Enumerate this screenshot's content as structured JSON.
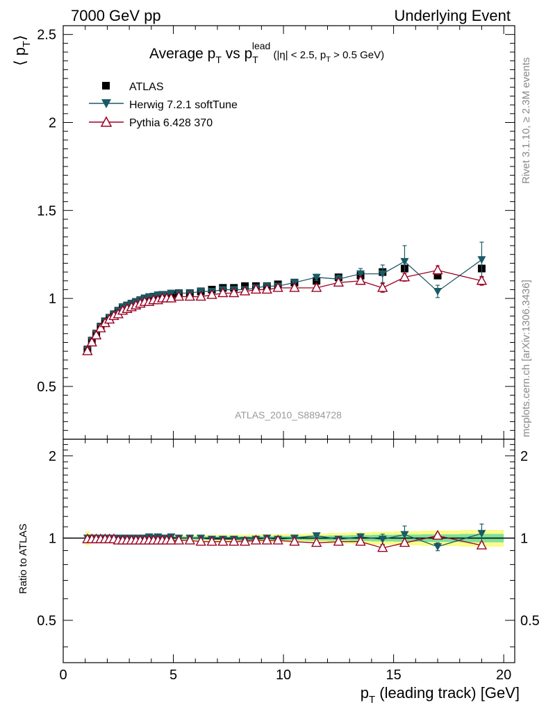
{
  "header": {
    "left": "7000 GeV pp",
    "right": "Underlying Event"
  },
  "side": {
    "rivet": "Rivet 3.1.10, ≥ 2.3M events",
    "mcplots": "mcplots.cern.ch [arXiv:1306.3436]"
  },
  "chart_data": {
    "type": "scatter",
    "title": {
      "main": "Average p",
      "sub": "T",
      "mid": " vs p",
      "sub2": "T",
      "sup2": "lead",
      "cut": " (|η| < 2.5, p",
      "cut_sub": "T",
      "cut_end": " > 0.5 GeV)"
    },
    "analysis_id": "ATLAS_2010_S8894728",
    "ylabel_main": "⟨ p",
    "ylabel_main_sub": "T",
    "ylabel_main_end": "⟩",
    "ylabel_ratio": "Ratio to ATLAS",
    "xlabel": "p",
    "xlabel_sub": "T",
    "xlabel_end": " (leading track) [GeV]",
    "xlim": [
      0,
      20.5
    ],
    "ylim_main": [
      0.2,
      2.55
    ],
    "ylim_ratio": [
      0.35,
      2.3
    ],
    "x_ticks": [
      "0",
      "5",
      "10",
      "15",
      "20"
    ],
    "y_ticks_main": [
      "0.5",
      "1",
      "1.5",
      "2",
      "2.5"
    ],
    "y_ticks_ratio": [
      "0.5",
      "1",
      "2"
    ],
    "legend_position": "top-left",
    "colors": {
      "atlas": "#000000",
      "herwig": "#1a5a66",
      "pythia": "#9a0022",
      "band_inner": "#7fe09a",
      "band_outer": "#fbfb8a"
    },
    "x": [
      1.1,
      1.3,
      1.5,
      1.7,
      1.9,
      2.1,
      2.3,
      2.5,
      2.7,
      2.9,
      3.1,
      3.3,
      3.5,
      3.7,
      3.9,
      4.1,
      4.3,
      4.5,
      4.7,
      4.9,
      5.25,
      5.75,
      6.25,
      6.75,
      7.25,
      7.75,
      8.25,
      8.75,
      9.25,
      9.75,
      10.5,
      11.5,
      12.5,
      13.5,
      14.5,
      15.5,
      17.0,
      19.0
    ],
    "series": [
      {
        "name": "ATLAS",
        "marker": "square",
        "values": [
          0.71,
          0.76,
          0.8,
          0.84,
          0.87,
          0.89,
          0.91,
          0.93,
          0.95,
          0.96,
          0.97,
          0.98,
          0.99,
          1.0,
          1.0,
          1.01,
          1.01,
          1.02,
          1.02,
          1.02,
          1.03,
          1.03,
          1.04,
          1.05,
          1.06,
          1.06,
          1.07,
          1.07,
          1.07,
          1.08,
          1.09,
          1.1,
          1.12,
          1.13,
          1.15,
          1.17,
          1.13,
          1.17
        ]
      },
      {
        "name": "Herwig 7.2.1 softTune",
        "marker": "triangle-down",
        "values": [
          0.71,
          0.76,
          0.8,
          0.84,
          0.87,
          0.89,
          0.91,
          0.93,
          0.95,
          0.96,
          0.97,
          0.98,
          0.99,
          1.0,
          1.01,
          1.01,
          1.02,
          1.02,
          1.02,
          1.03,
          1.03,
          1.03,
          1.04,
          1.04,
          1.05,
          1.05,
          1.05,
          1.06,
          1.07,
          1.07,
          1.09,
          1.12,
          1.11,
          1.14,
          1.14,
          1.21,
          1.04,
          1.22
        ],
        "errors": [
          0.005,
          0.005,
          0.005,
          0.005,
          0.005,
          0.005,
          0.005,
          0.005,
          0.005,
          0.005,
          0.005,
          0.005,
          0.005,
          0.005,
          0.005,
          0.005,
          0.005,
          0.005,
          0.005,
          0.005,
          0.006,
          0.006,
          0.006,
          0.007,
          0.008,
          0.008,
          0.009,
          0.01,
          0.011,
          0.012,
          0.014,
          0.018,
          0.022,
          0.03,
          0.05,
          0.09,
          0.035,
          0.1
        ]
      },
      {
        "name": "Pythia 6.428 370",
        "marker": "triangle-up-open",
        "values": [
          0.7,
          0.75,
          0.79,
          0.83,
          0.86,
          0.88,
          0.9,
          0.91,
          0.93,
          0.94,
          0.95,
          0.96,
          0.97,
          0.98,
          0.98,
          0.99,
          0.99,
          1.0,
          1.0,
          1.0,
          1.01,
          1.01,
          1.01,
          1.02,
          1.03,
          1.03,
          1.04,
          1.05,
          1.05,
          1.06,
          1.06,
          1.06,
          1.09,
          1.1,
          1.06,
          1.12,
          1.16,
          1.1
        ],
        "errors": [
          0.005,
          0.005,
          0.005,
          0.005,
          0.005,
          0.005,
          0.005,
          0.005,
          0.005,
          0.005,
          0.005,
          0.005,
          0.005,
          0.005,
          0.005,
          0.005,
          0.005,
          0.005,
          0.005,
          0.005,
          0.006,
          0.006,
          0.006,
          0.007,
          0.008,
          0.008,
          0.009,
          0.01,
          0.01,
          0.011,
          0.012,
          0.014,
          0.016,
          0.02,
          0.025,
          0.022,
          0.025,
          0.025
        ]
      }
    ],
    "ratio": {
      "herwig": [
        1.0,
        1.0,
        1.0,
        1.0,
        1.0,
        1.0,
        1.0,
        1.0,
        1.0,
        1.0,
        1.0,
        1.0,
        1.0,
        1.0,
        1.01,
        1.0,
        1.01,
        1.0,
        1.0,
        1.01,
        1.0,
        1.0,
        1.0,
        0.99,
        0.99,
        0.99,
        0.98,
        0.99,
        1.0,
        0.99,
        1.0,
        1.02,
        0.99,
        1.01,
        0.99,
        1.03,
        0.93,
        1.04
      ],
      "pythia": [
        0.99,
        0.99,
        0.99,
        0.99,
        0.99,
        0.99,
        0.99,
        0.98,
        0.98,
        0.98,
        0.98,
        0.98,
        0.98,
        0.98,
        0.98,
        0.98,
        0.98,
        0.98,
        0.98,
        0.98,
        0.98,
        0.98,
        0.97,
        0.97,
        0.97,
        0.97,
        0.97,
        0.98,
        0.98,
        0.98,
        0.97,
        0.96,
        0.97,
        0.97,
        0.92,
        0.96,
        1.02,
        0.94
      ],
      "band_inner_halfwidth": [
        0.025,
        0.02,
        0.018,
        0.016,
        0.015,
        0.014,
        0.013,
        0.013,
        0.013,
        0.013,
        0.013,
        0.013,
        0.013,
        0.013,
        0.013,
        0.013,
        0.013,
        0.013,
        0.013,
        0.013,
        0.013,
        0.013,
        0.014,
        0.014,
        0.014,
        0.015,
        0.015,
        0.016,
        0.016,
        0.017,
        0.018,
        0.02,
        0.022,
        0.025,
        0.028,
        0.03,
        0.032,
        0.035
      ],
      "band_outer_halfwidth": [
        0.06,
        0.035,
        0.03,
        0.028,
        0.026,
        0.025,
        0.024,
        0.024,
        0.024,
        0.024,
        0.024,
        0.024,
        0.024,
        0.024,
        0.024,
        0.024,
        0.024,
        0.024,
        0.024,
        0.024,
        0.025,
        0.026,
        0.027,
        0.028,
        0.028,
        0.03,
        0.03,
        0.032,
        0.033,
        0.034,
        0.036,
        0.04,
        0.045,
        0.05,
        0.055,
        0.06,
        0.065,
        0.07
      ]
    }
  }
}
